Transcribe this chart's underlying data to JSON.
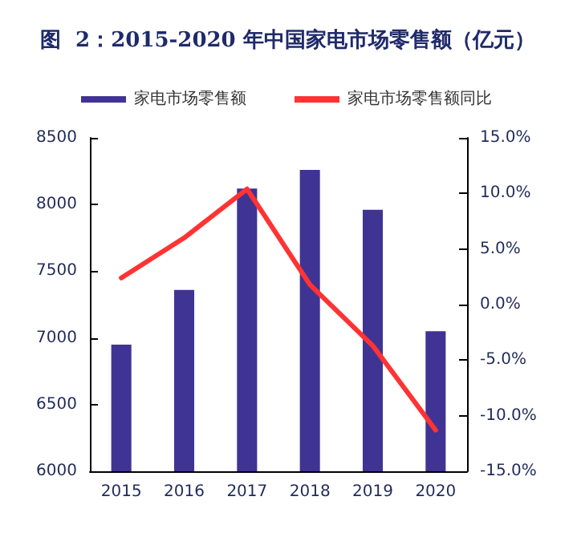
{
  "chart_data": {
    "type": "bar",
    "title": "图  2：2015-2020 年中国家电市场零售额（亿元）",
    "categories": [
      "2015",
      "2016",
      "2017",
      "2018",
      "2019",
      "2020"
    ],
    "series": [
      {
        "name": "家电市场零售额",
        "color": "#3f3494",
        "values": [
          6950,
          7360,
          8120,
          8260,
          7960,
          7050
        ]
      },
      {
        "name": "家电市场零售额同比",
        "type": "line",
        "axis": "y2",
        "color": "#ff3333",
        "values": [
          2.4,
          6.0,
          10.4,
          1.8,
          -3.7,
          -11.3
        ]
      }
    ],
    "ylim": [
      6000,
      8500
    ],
    "yticks": [
      6000,
      6500,
      7000,
      7500,
      8000,
      8500
    ],
    "y2lim": [
      -15,
      15
    ],
    "y2ticks": [
      {
        "value": -15,
        "label": "-15.0%"
      },
      {
        "value": -10,
        "label": "-10.0%"
      },
      {
        "value": -5,
        "label": "-5.0%"
      },
      {
        "value": 0,
        "label": "0.0%"
      },
      {
        "value": 5,
        "label": "5.0%"
      },
      {
        "value": 10,
        "label": "10.0%"
      },
      {
        "value": 15,
        "label": "15.0%"
      }
    ],
    "grid": false,
    "legend": "top",
    "marker": "none"
  }
}
